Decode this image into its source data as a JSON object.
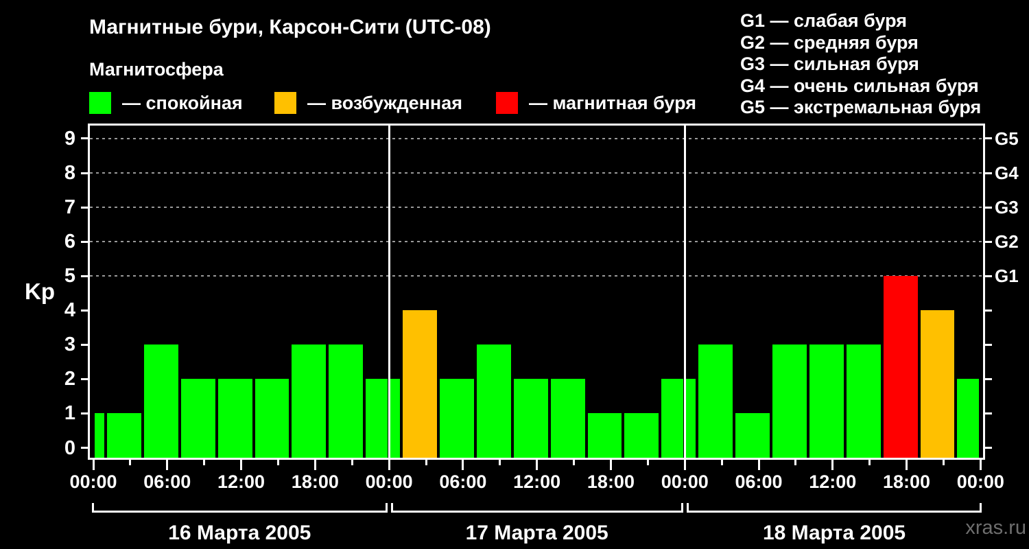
{
  "header": {
    "title": "Магнитные бури, Карсон-Сити (UTC-08)",
    "subtitle": "Магнитосфера",
    "legend": [
      {
        "name": "quiet",
        "label": "— спокойная",
        "color": "#00ff00"
      },
      {
        "name": "excited",
        "label": "— возбужденная",
        "color": "#ffc000"
      },
      {
        "name": "storm",
        "label": "— магнитная буря",
        "color": "#ff0000"
      }
    ],
    "g_legend": [
      "G1 — слабая буря",
      "G2 — средняя буря",
      "G3 — сильная буря",
      "G4 — очень сильная буря",
      "G5 — экстремальная буря"
    ]
  },
  "watermark": "xras.ru",
  "chart_data": {
    "type": "bar",
    "title": "Магнитные бури, Карсон-Сити (UTC-08)",
    "ylabel": "Kp",
    "ylim": [
      0,
      9
    ],
    "y_ticks": [
      0,
      1,
      2,
      3,
      4,
      5,
      6,
      7,
      8,
      9
    ],
    "grid_levels": [
      5,
      6,
      7,
      8,
      9
    ],
    "right_axis_labels": [
      {
        "kp": 5,
        "label": "G1"
      },
      {
        "kp": 6,
        "label": "G2"
      },
      {
        "kp": 7,
        "label": "G3"
      },
      {
        "kp": 8,
        "label": "G4"
      },
      {
        "kp": 9,
        "label": "G5"
      }
    ],
    "x_hour_span": 72,
    "x_minor_tick_every_hours": 3,
    "x_major_tick_every_hours": 6,
    "x_tick_labels": [
      "00:00",
      "06:00",
      "12:00",
      "18:00",
      "00:00",
      "06:00",
      "12:00",
      "18:00",
      "00:00",
      "06:00",
      "12:00",
      "18:00",
      "00:00"
    ],
    "colors": {
      "quiet": "#00ff00",
      "excited": "#ffc000",
      "storm": "#ff0000"
    },
    "color_rules": {
      "green_max_kp": 3,
      "orange_kp": 4,
      "red_min_kp": 5
    },
    "days": [
      {
        "date_label": "16 Марта 2005",
        "start_hour": 0,
        "segments": [
          {
            "from": 0,
            "to": 1,
            "kp": 1
          },
          {
            "from": 1,
            "to": 4,
            "kp": 1
          },
          {
            "from": 4,
            "to": 7,
            "kp": 3
          },
          {
            "from": 7,
            "to": 10,
            "kp": 2
          },
          {
            "from": 10,
            "to": 13,
            "kp": 2
          },
          {
            "from": 13,
            "to": 16,
            "kp": 2
          },
          {
            "from": 16,
            "to": 19,
            "kp": 3
          },
          {
            "from": 19,
            "to": 22,
            "kp": 3
          },
          {
            "from": 22,
            "to": 24,
            "kp": 2
          }
        ]
      },
      {
        "date_label": "17 Марта 2005",
        "start_hour": 24,
        "segments": [
          {
            "from": 0,
            "to": 1,
            "kp": 2
          },
          {
            "from": 1,
            "to": 4,
            "kp": 4
          },
          {
            "from": 4,
            "to": 7,
            "kp": 2
          },
          {
            "from": 7,
            "to": 10,
            "kp": 3
          },
          {
            "from": 10,
            "to": 13,
            "kp": 2
          },
          {
            "from": 13,
            "to": 16,
            "kp": 2
          },
          {
            "from": 16,
            "to": 19,
            "kp": 1
          },
          {
            "from": 19,
            "to": 22,
            "kp": 1
          },
          {
            "from": 22,
            "to": 24,
            "kp": 2
          }
        ]
      },
      {
        "date_label": "18 Марта 2005",
        "start_hour": 48,
        "segments": [
          {
            "from": 0,
            "to": 1,
            "kp": 2
          },
          {
            "from": 1,
            "to": 4,
            "kp": 3
          },
          {
            "from": 4,
            "to": 7,
            "kp": 1
          },
          {
            "from": 7,
            "to": 10,
            "kp": 3
          },
          {
            "from": 10,
            "to": 13,
            "kp": 3
          },
          {
            "from": 13,
            "to": 16,
            "kp": 3
          },
          {
            "from": 16,
            "to": 19,
            "kp": 5
          },
          {
            "from": 19,
            "to": 22,
            "kp": 4
          },
          {
            "from": 22,
            "to": 24,
            "kp": 2
          }
        ]
      }
    ]
  }
}
